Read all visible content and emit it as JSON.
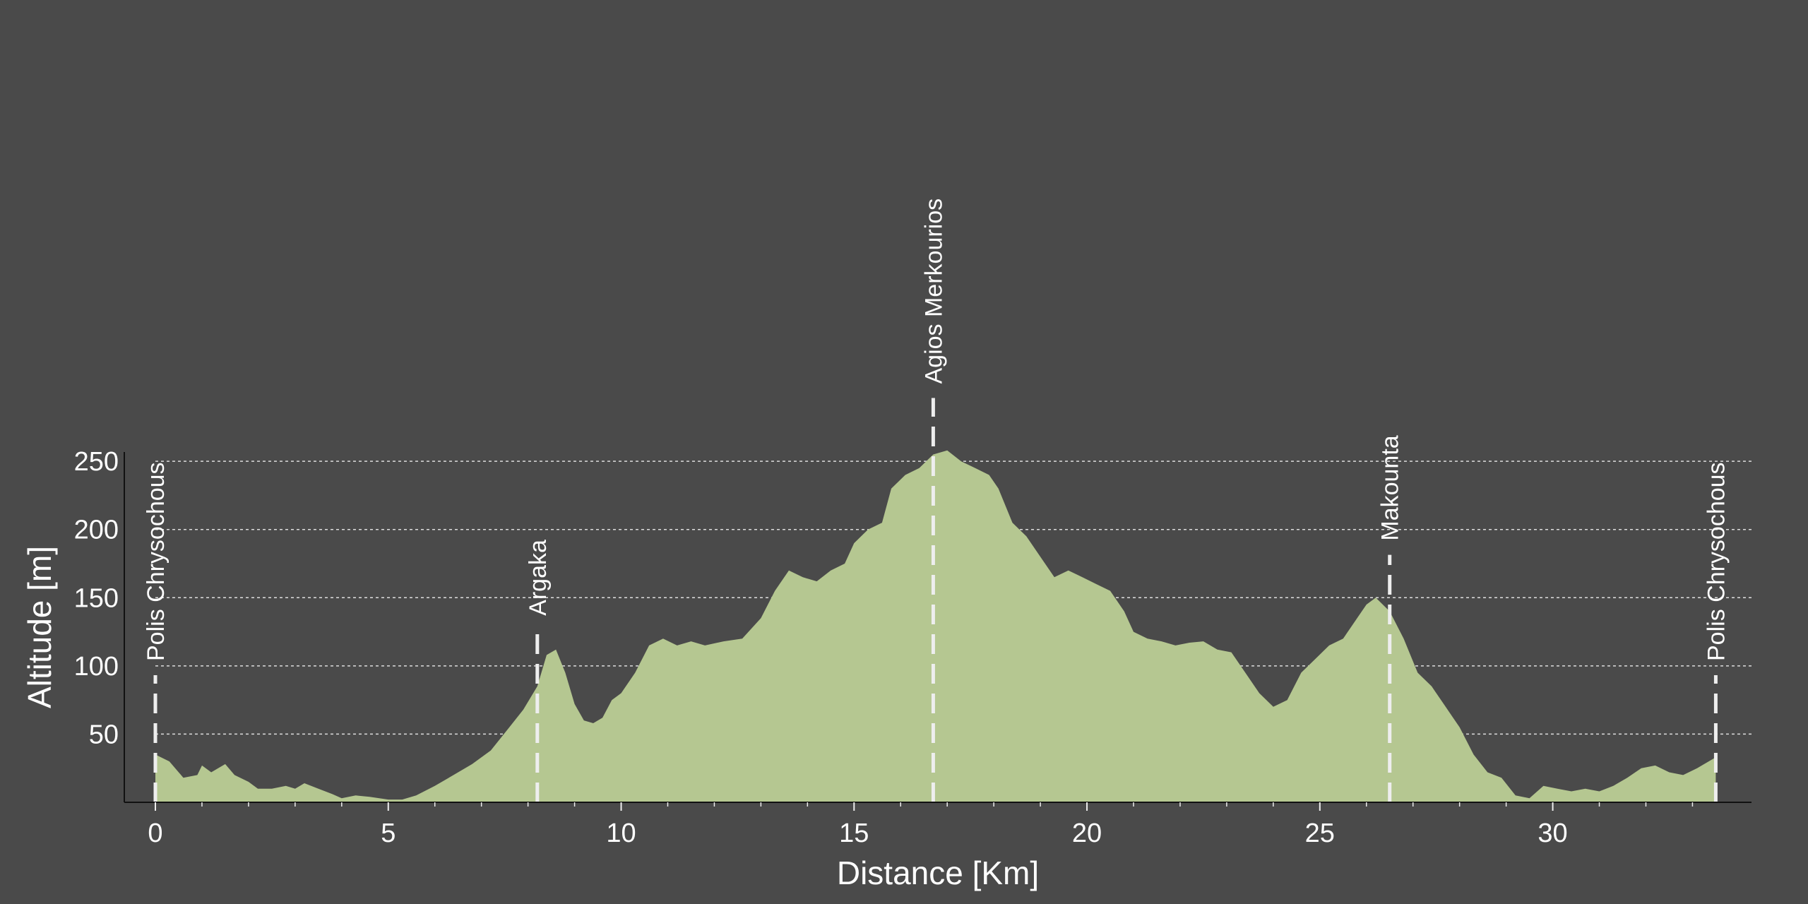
{
  "chart_data": {
    "type": "area",
    "title": "",
    "xlabel": "Distance [Km]",
    "ylabel": "Altitude [m]",
    "xlim": [
      0,
      33.6
    ],
    "ylim": [
      0,
      262
    ],
    "x_ticks": [
      0,
      5,
      10,
      15,
      20,
      25,
      30
    ],
    "x_tick_labels": [
      "0",
      "5",
      "10",
      "15",
      "20",
      "25",
      "30"
    ],
    "y_ticks": [
      50,
      100,
      150,
      200,
      250
    ],
    "y_tick_labels": [
      "50",
      "100",
      "150",
      "200",
      "250"
    ],
    "grid": "horizontal dashed",
    "fill_color": "#b5c791",
    "background_color": "#4a4a4a",
    "markers": [
      {
        "label": "Polis Chrysochous",
        "x": 0
      },
      {
        "label": "Argaka",
        "x": 8.2
      },
      {
        "label": "Agios Merkourios",
        "x": 16.7
      },
      {
        "label": "Makounta",
        "x": 26.5
      },
      {
        "label": "Polis Chrysochous",
        "x": 33.5
      }
    ],
    "profile": {
      "x": [
        0,
        0.3,
        0.6,
        0.9,
        1.0,
        1.2,
        1.5,
        1.7,
        2.0,
        2.2,
        2.5,
        2.8,
        3.0,
        3.2,
        3.5,
        3.8,
        4.0,
        4.3,
        4.6,
        5.0,
        5.3,
        5.6,
        6.0,
        6.4,
        6.8,
        7.2,
        7.6,
        7.9,
        8.2,
        8.4,
        8.6,
        8.8,
        9.0,
        9.2,
        9.4,
        9.6,
        9.8,
        10.0,
        10.3,
        10.6,
        10.9,
        11.2,
        11.5,
        11.8,
        12.2,
        12.6,
        13.0,
        13.3,
        13.6,
        13.9,
        14.2,
        14.5,
        14.8,
        15.0,
        15.3,
        15.6,
        15.8,
        16.1,
        16.4,
        16.7,
        17.0,
        17.3,
        17.6,
        17.9,
        18.1,
        18.4,
        18.7,
        19.0,
        19.3,
        19.6,
        19.9,
        20.2,
        20.5,
        20.8,
        21.0,
        21.3,
        21.6,
        21.9,
        22.2,
        22.5,
        22.8,
        23.1,
        23.4,
        23.7,
        24.0,
        24.3,
        24.6,
        24.9,
        25.2,
        25.5,
        25.8,
        26.0,
        26.2,
        26.5,
        26.8,
        27.1,
        27.4,
        27.7,
        28.0,
        28.3,
        28.6,
        28.9,
        29.2,
        29.5,
        29.8,
        30.1,
        30.4,
        30.7,
        31.0,
        31.3,
        31.6,
        31.9,
        32.2,
        32.5,
        32.8,
        33.1,
        33.5
      ],
      "y": [
        35,
        30,
        18,
        20,
        27,
        22,
        28,
        20,
        15,
        10,
        10,
        12,
        10,
        14,
        10,
        6,
        3,
        5,
        4,
        2,
        2,
        5,
        12,
        20,
        28,
        38,
        55,
        68,
        85,
        108,
        112,
        95,
        72,
        60,
        58,
        62,
        75,
        80,
        95,
        115,
        120,
        115,
        118,
        115,
        118,
        120,
        135,
        155,
        170,
        165,
        162,
        170,
        175,
        190,
        200,
        205,
        230,
        240,
        245,
        255,
        258,
        250,
        245,
        240,
        230,
        205,
        195,
        180,
        165,
        170,
        165,
        160,
        155,
        140,
        125,
        120,
        118,
        115,
        117,
        118,
        112,
        110,
        95,
        80,
        70,
        75,
        95,
        105,
        115,
        120,
        135,
        145,
        150,
        140,
        120,
        95,
        85,
        70,
        55,
        35,
        22,
        18,
        5,
        3,
        12,
        10,
        8,
        10,
        8,
        12,
        18,
        25,
        27,
        22,
        20,
        25,
        33
      ]
    }
  }
}
